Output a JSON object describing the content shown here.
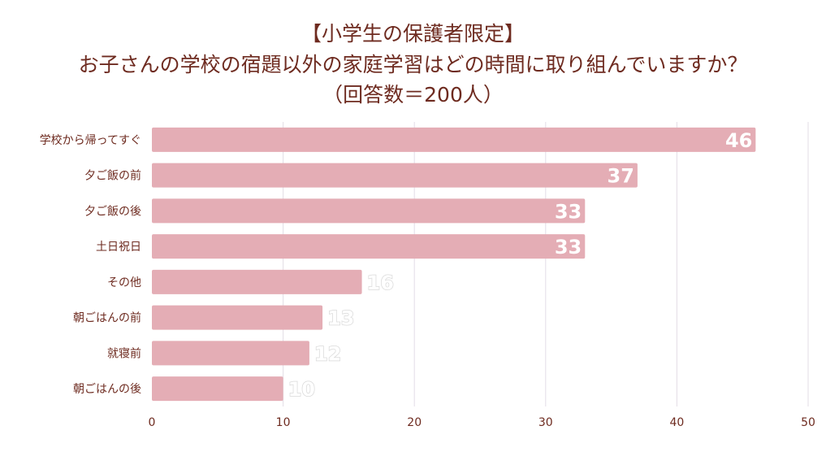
{
  "chart_data": {
    "type": "bar",
    "orientation": "horizontal",
    "title": "【小学生の保護者限定】",
    "subtitle": "お子さんの学校の宿題以外の家庭学習はどの時間に取り組んでいますか？",
    "note": "（回答数＝200人）",
    "categories": [
      "学校から帰ってすぐ",
      "夕ご飯の前",
      "夕ご飯の後",
      "土日祝日",
      "その他",
      "朝ごはんの前",
      "就寝前",
      "朝ごはんの後"
    ],
    "values": [
      46,
      37,
      33,
      33,
      16,
      13,
      12,
      10
    ],
    "xlabel": "",
    "ylabel": "",
    "xlim": [
      0,
      50
    ],
    "xticks": [
      "0",
      "10",
      "20",
      "30",
      "40",
      "50"
    ],
    "grid": true,
    "colors": {
      "bar": "#e4adb5",
      "text": "#6e2b20",
      "grid": "#e3dde6",
      "label": "#ffffff"
    }
  }
}
